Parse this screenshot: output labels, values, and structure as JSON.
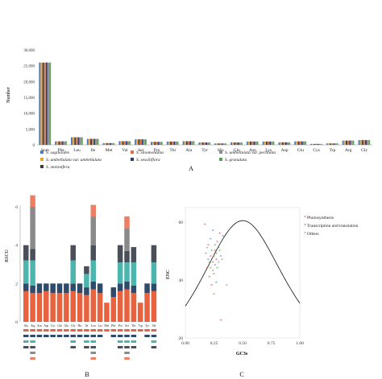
{
  "panels": {
    "a": {
      "label": "A"
    },
    "b": {
      "label": "B"
    },
    "c": {
      "label": "C"
    }
  },
  "chart_data": [
    {
      "id": "A",
      "type": "bar",
      "title": "",
      "xlabel": "",
      "ylabel": "Number",
      "ylim": [
        0,
        30000
      ],
      "yticks": [
        "0",
        "5,000",
        "10,000",
        "15,000",
        "20,000",
        "25,000",
        "30,000"
      ],
      "categories": [
        "Sum",
        "Phe",
        "Leu",
        "Ile",
        "Met",
        "Val",
        "Ser",
        "Pro",
        "Thr",
        "Ala",
        "Tyr",
        "His",
        "Gln",
        "Asn",
        "Lys",
        "Asp",
        "Glu",
        "Cys",
        "Trp",
        "Arg",
        "Gly"
      ],
      "series": [
        {
          "name": "S. saginoides",
          "color": "#4a78b8",
          "values": [
            26000,
            1100,
            2400,
            1900,
            550,
            1150,
            1750,
            950,
            1050,
            1150,
            750,
            450,
            750,
            1050,
            1050,
            800,
            1100,
            300,
            450,
            1350,
            1500
          ]
        },
        {
          "name": "S. umbellulata var. umbellulata",
          "color": "#f0a132",
          "values": [
            26050,
            1120,
            2420,
            1920,
            560,
            1160,
            1760,
            960,
            1060,
            1160,
            760,
            460,
            760,
            1060,
            1060,
            810,
            1110,
            310,
            460,
            1360,
            1510
          ]
        },
        {
          "name": "S. stolonifera",
          "color": "#3b3b3b",
          "values": [
            25950,
            1090,
            2390,
            1890,
            545,
            1140,
            1740,
            945,
            1045,
            1140,
            745,
            445,
            745,
            1045,
            1045,
            795,
            1095,
            295,
            445,
            1340,
            1490
          ]
        },
        {
          "name": "S. sinomontana",
          "color": "#e2703d",
          "values": [
            26000,
            1110,
            2410,
            1910,
            555,
            1155,
            1755,
            955,
            1055,
            1155,
            755,
            455,
            755,
            1055,
            1055,
            805,
            1105,
            305,
            455,
            1355,
            1505
          ]
        },
        {
          "name": "S. sessiliflora",
          "color": "#2c3e6e",
          "values": [
            26020,
            1105,
            2405,
            1905,
            552,
            1152,
            1752,
            952,
            1052,
            1152,
            752,
            452,
            752,
            1052,
            1052,
            802,
            1102,
            302,
            452,
            1352,
            1502
          ]
        },
        {
          "name": "S. umbellulata var. pectinata",
          "color": "#8c8c8c",
          "values": [
            25980,
            1095,
            2395,
            1895,
            548,
            1148,
            1748,
            948,
            1048,
            1148,
            748,
            448,
            748,
            1048,
            1048,
            798,
            1098,
            298,
            448,
            1348,
            1498
          ]
        },
        {
          "name": "S. granulata",
          "color": "#5aa05a",
          "values": [
            26010,
            1115,
            2415,
            1915,
            558,
            1158,
            1758,
            958,
            1058,
            1158,
            758,
            458,
            758,
            1058,
            1058,
            808,
            1108,
            308,
            458,
            1358,
            1508
          ]
        }
      ]
    },
    {
      "id": "B",
      "type": "bar",
      "stacked": true,
      "xlabel": "",
      "ylabel": "RSCU",
      "ylim": [
        0,
        6
      ],
      "yticks": [
        "0",
        "2",
        "4",
        "6"
      ],
      "categories": [
        "Ala",
        "Arg",
        "Asn",
        "Asp",
        "Cys",
        "Gln",
        "Glu",
        "Gly",
        "His",
        "Ile",
        "Leu",
        "Lys",
        "Met",
        "Phe",
        "Pro",
        "Ser",
        "Thr",
        "Trp",
        "Tyr",
        "Val"
      ],
      "series": [
        {
          "name": "",
          "color": "#e8623f",
          "values": [
            1.6,
            1.5,
            1.5,
            1.6,
            1.5,
            1.5,
            1.5,
            1.6,
            1.5,
            1.4,
            1.7,
            1.5,
            1.0,
            1.3,
            1.6,
            1.7,
            1.5,
            1.0,
            1.5,
            1.6
          ]
        },
        {
          "name": "",
          "color": "#2f4a6b",
          "values": [
            0.4,
            0.4,
            0.5,
            0.4,
            0.5,
            0.5,
            0.5,
            0.4,
            0.5,
            0.4,
            0.4,
            0.5,
            0.0,
            0.5,
            0.4,
            0.4,
            0.4,
            0.0,
            0.5,
            0.4
          ]
        },
        {
          "name": "",
          "color": "#4bb5ae",
          "values": [
            1.2,
            1.3,
            0.0,
            0.0,
            0.0,
            0.0,
            0.0,
            1.2,
            0.0,
            0.7,
            1.1,
            0.0,
            0.0,
            0.0,
            1.1,
            1.0,
            1.2,
            0.0,
            0.0,
            1.1
          ]
        },
        {
          "name": "",
          "color": "#4a4f5a",
          "values": [
            0.8,
            0.6,
            0.0,
            0.0,
            0.0,
            0.0,
            0.0,
            0.8,
            0.0,
            0.4,
            0.8,
            0.0,
            0.0,
            0.0,
            0.9,
            0.6,
            0.8,
            0.0,
            0.0,
            0.9
          ]
        },
        {
          "name": "",
          "color": "#8a8a8a",
          "values": [
            0.0,
            2.2,
            0.0,
            0.0,
            0.0,
            0.0,
            0.0,
            0.0,
            0.0,
            0.0,
            1.5,
            0.0,
            0.0,
            0.0,
            0.0,
            1.2,
            0.0,
            0.0,
            0.0,
            0.0
          ]
        },
        {
          "name": "",
          "color": "#ee7e62",
          "values": [
            0.0,
            0.6,
            0.0,
            0.0,
            0.0,
            0.0,
            0.0,
            0.0,
            0.0,
            0.0,
            0.6,
            0.0,
            0.0,
            0.0,
            0.0,
            0.6,
            0.0,
            0.0,
            0.0,
            0.0
          ]
        }
      ]
    },
    {
      "id": "C",
      "type": "scatter",
      "xlabel": "GC3s",
      "ylabel": "ENC",
      "xlim": [
        0,
        1
      ],
      "ylim": [
        20,
        65
      ],
      "xticks": [
        "0.00",
        "0.25",
        "0.50",
        "0.75",
        "1.00"
      ],
      "yticks": [
        "20",
        "40",
        "60"
      ],
      "legend": [
        "Photosynthesis",
        "Transcription and translation",
        "Others"
      ],
      "legend_colors": [
        "#d9534f",
        "#4a8bc9",
        "#6fa85a"
      ],
      "expected_curve": "ENC = 2 + s + 29/(s^2 + (1-s)^2)",
      "points": [
        {
          "x": 0.17,
          "y": 59,
          "g": 0
        },
        {
          "x": 0.2,
          "y": 52,
          "g": 0
        },
        {
          "x": 0.22,
          "y": 48,
          "g": 0
        },
        {
          "x": 0.24,
          "y": 46,
          "g": 0
        },
        {
          "x": 0.26,
          "y": 50,
          "g": 0
        },
        {
          "x": 0.19,
          "y": 44,
          "g": 0
        },
        {
          "x": 0.28,
          "y": 53,
          "g": 0
        },
        {
          "x": 0.21,
          "y": 41,
          "g": 0
        },
        {
          "x": 0.3,
          "y": 56,
          "g": 0
        },
        {
          "x": 0.23,
          "y": 38,
          "g": 0
        },
        {
          "x": 0.27,
          "y": 47,
          "g": 0
        },
        {
          "x": 0.25,
          "y": 42,
          "g": 0
        },
        {
          "x": 0.18,
          "y": 49,
          "g": 1
        },
        {
          "x": 0.22,
          "y": 54,
          "g": 1
        },
        {
          "x": 0.26,
          "y": 45,
          "g": 1
        },
        {
          "x": 0.29,
          "y": 51,
          "g": 1
        },
        {
          "x": 0.24,
          "y": 57,
          "g": 1
        },
        {
          "x": 0.31,
          "y": 48,
          "g": 1
        },
        {
          "x": 0.2,
          "y": 47,
          "g": 1
        },
        {
          "x": 0.27,
          "y": 39,
          "g": 1
        },
        {
          "x": 0.33,
          "y": 55,
          "g": 1
        },
        {
          "x": 0.23,
          "y": 50,
          "g": 2
        },
        {
          "x": 0.25,
          "y": 48,
          "g": 2
        },
        {
          "x": 0.28,
          "y": 44,
          "g": 2
        },
        {
          "x": 0.21,
          "y": 46,
          "g": 2
        },
        {
          "x": 0.3,
          "y": 50,
          "g": 2
        },
        {
          "x": 0.26,
          "y": 52,
          "g": 2
        },
        {
          "x": 0.24,
          "y": 43,
          "g": 2
        },
        {
          "x": 0.32,
          "y": 47,
          "g": 2
        },
        {
          "x": 0.19,
          "y": 51,
          "g": 2
        },
        {
          "x": 0.27,
          "y": 49,
          "g": 2
        },
        {
          "x": 0.29,
          "y": 46,
          "g": 2
        },
        {
          "x": 0.22,
          "y": 44,
          "g": 2
        },
        {
          "x": 0.36,
          "y": 38,
          "g": 2
        },
        {
          "x": 0.31,
          "y": 26,
          "g": 0
        },
        {
          "x": 0.25,
          "y": 35,
          "g": 2
        }
      ]
    }
  ]
}
